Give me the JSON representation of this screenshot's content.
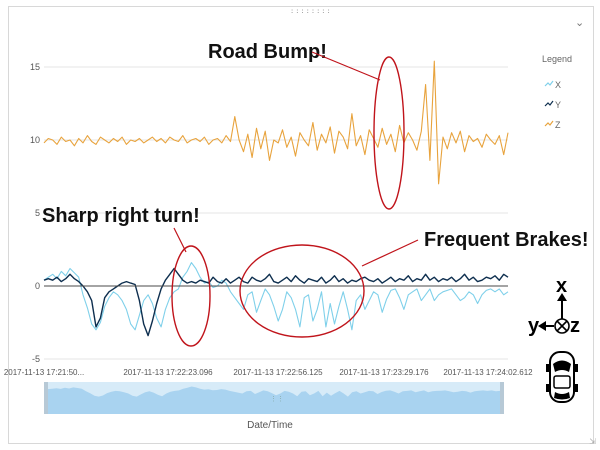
{
  "window": {
    "grip": "::::::::",
    "menu_icon": "chevron-down-icon"
  },
  "legend": {
    "title": "Legend",
    "items": [
      {
        "name": "X",
        "color": "#7fd0ea"
      },
      {
        "name": "Y",
        "color": "#0e2f4f"
      },
      {
        "name": "Z",
        "color": "#e8a33d"
      }
    ]
  },
  "annotations": {
    "road_bump": "Road Bump!",
    "sharp_turn": "Sharp right turn!",
    "frequent_brakes": "Frequent Brakes!"
  },
  "xaxis": {
    "title": "Date/Time"
  },
  "orientation": {
    "x": "x",
    "y": "y",
    "z": "z"
  },
  "chart_data": {
    "type": "line",
    "title": "",
    "xlabel": "Date/Time",
    "ylabel": "",
    "ylim": [
      -5,
      16
    ],
    "yticks": [
      "15",
      "10",
      "5",
      "0",
      "-5"
    ],
    "xticks": [
      "2017-11-13 17:21:50...",
      "2017-11-13 17:22:23.096",
      "2017-11-13 17:22:56.125",
      "2017-11-13 17:23:29.176",
      "2017-11-13 17:24:02.612"
    ],
    "grid": true,
    "legend_position": "right",
    "series": [
      {
        "name": "X",
        "color": "#7fd0ea",
        "values": [
          0.4,
          0.6,
          0.8,
          0.5,
          1.0,
          0.7,
          1.2,
          0.9,
          0.6,
          -0.6,
          -1.5,
          -2.6,
          -3.0,
          -2.5,
          -1.4,
          -0.8,
          -0.4,
          -0.6,
          -1.0,
          -1.6,
          -2.6,
          -3.0,
          -2.0,
          -1.0,
          -0.6,
          -1.2,
          -2.2,
          -2.8,
          -1.6,
          -0.8,
          -0.4,
          -0.2,
          0.6,
          1.0,
          1.6,
          1.2,
          0.6,
          0.2,
          0.3,
          -0.1,
          0.0,
          0.4,
          0.2,
          -0.4,
          -0.8,
          -1.2,
          -1.6,
          -0.6,
          -0.4,
          -1.8,
          -1.0,
          -0.2,
          -0.6,
          -1.4,
          -2.4,
          -1.6,
          -0.4,
          -0.8,
          -1.6,
          -2.8,
          -0.8,
          -0.6,
          -2.4,
          -1.6,
          -0.4,
          -2.8,
          -1.2,
          -2.6,
          -1.4,
          -0.4,
          -1.6,
          -3.0,
          -1.0,
          -0.6,
          -1.6,
          -1.0,
          -0.4,
          -0.6,
          -1.8,
          -0.9,
          -0.3,
          -0.2,
          -0.8,
          -1.6,
          -0.6,
          -0.4,
          -0.2,
          -1.0,
          -0.6,
          -0.2,
          -1.0,
          -0.6,
          -0.4,
          -0.3,
          -0.2,
          -0.6,
          -1.0,
          -0.8,
          -0.4,
          -0.6,
          -1.2,
          -0.6,
          -0.3,
          -0.2,
          -0.4,
          -0.2,
          -0.6,
          -0.4
        ]
      },
      {
        "name": "Y",
        "color": "#0e2f4f",
        "values": [
          0.4,
          0.5,
          0.4,
          0.6,
          0.3,
          0.5,
          0.8,
          0.5,
          0.3,
          0.0,
          -0.4,
          -1.0,
          -2.8,
          -2.2,
          -0.8,
          -0.4,
          -0.2,
          0.0,
          0.2,
          0.3,
          0.2,
          0.1,
          -1.0,
          -2.6,
          -3.4,
          -2.4,
          -1.2,
          -0.2,
          0.4,
          0.8,
          1.2,
          0.8,
          0.4,
          0.2,
          0.3,
          0.2,
          0.4,
          0.3,
          0.2,
          0.6,
          0.3,
          0.2,
          0.5,
          0.2,
          0.4,
          0.6,
          0.3,
          0.2,
          0.6,
          0.4,
          0.3,
          0.5,
          0.8,
          0.3,
          0.2,
          0.4,
          0.6,
          0.3,
          0.7,
          0.4,
          0.2,
          0.5,
          0.4,
          0.3,
          0.6,
          0.2,
          0.4,
          0.7,
          0.3,
          0.5,
          0.2,
          0.4,
          0.3,
          0.5,
          0.6,
          0.4,
          0.3,
          0.5,
          0.2,
          0.4,
          0.6,
          0.3,
          0.5,
          0.4,
          0.7,
          0.3,
          0.5,
          0.4,
          0.8,
          0.4,
          0.6,
          0.3,
          0.5,
          0.4,
          0.6,
          0.3,
          0.5,
          0.8,
          0.4,
          0.6,
          0.3,
          0.4,
          0.6,
          0.5,
          0.7,
          0.4,
          0.8,
          0.6
        ]
      },
      {
        "name": "Z",
        "color": "#e8a33d",
        "values": [
          9.8,
          10.1,
          10.0,
          9.7,
          10.2,
          9.9,
          10.0,
          9.6,
          10.1,
          9.8,
          10.3,
          9.9,
          9.7,
          10.2,
          10.0,
          9.8,
          10.1,
          9.9,
          10.2,
          9.7,
          10.0,
          9.9,
          10.1,
          9.8,
          10.0,
          10.2,
          9.9,
          10.1,
          9.8,
          10.2,
          10.0,
          9.9,
          10.3,
          9.8,
          10.0,
          10.1,
          9.9,
          10.2,
          9.7,
          10.0,
          10.1,
          9.8,
          10.3,
          9.9,
          11.6,
          10.0,
          9.2,
          10.4,
          8.8,
          10.8,
          9.4,
          10.6,
          8.6,
          10.0,
          9.8,
          10.7,
          9.5,
          10.2,
          8.9,
          10.5,
          10.0,
          9.6,
          11.2,
          9.3,
          10.4,
          9.8,
          10.9,
          9.1,
          10.6,
          10.2,
          9.4,
          11.8,
          9.6,
          10.3,
          9.0,
          10.7,
          10.1,
          9.5,
          10.8,
          9.7,
          10.4,
          9.2,
          11.0,
          9.8,
          10.5,
          10.0,
          9.3,
          10.6,
          13.8,
          8.6,
          15.4,
          7.0,
          10.2,
          9.4,
          10.5,
          9.8,
          10.6,
          9.2,
          10.3,
          9.9,
          10.1,
          9.5,
          10.4,
          10.0,
          9.7,
          10.3,
          9.0,
          10.5
        ]
      }
    ]
  }
}
